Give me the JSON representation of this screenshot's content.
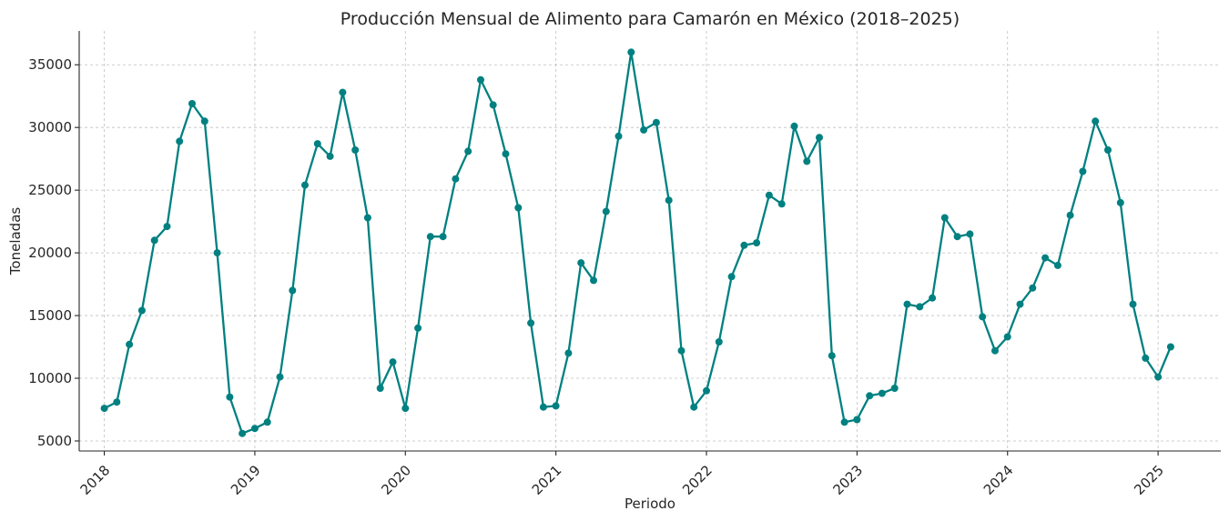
{
  "chart_data": {
    "type": "line",
    "title": "Producción Mensual de Alimento para Camarón en México (2018–2025)",
    "xlabel": "Periodo",
    "ylabel": "Toneladas",
    "grid": true,
    "legend": "none",
    "color": "#008080",
    "x_ticks": [
      "2018",
      "2019",
      "2020",
      "2021",
      "2022",
      "2023",
      "2024",
      "2025"
    ],
    "y_ticks": [
      5000,
      10000,
      15000,
      20000,
      25000,
      30000,
      35000
    ],
    "xlim": [
      "2017-11",
      "2025-06"
    ],
    "ylim": [
      4200,
      37700
    ],
    "series": [
      {
        "x": [
          "2018-01",
          "2018-02",
          "2018-03",
          "2018-04",
          "2018-05",
          "2018-06",
          "2018-07",
          "2018-08",
          "2018-09",
          "2018-10",
          "2018-11",
          "2018-12",
          "2019-01",
          "2019-02",
          "2019-03",
          "2019-04",
          "2019-05",
          "2019-06",
          "2019-07",
          "2019-08",
          "2019-09",
          "2019-10",
          "2019-11",
          "2019-12",
          "2020-01",
          "2020-02",
          "2020-03",
          "2020-04",
          "2020-05",
          "2020-06",
          "2020-07",
          "2020-08",
          "2020-09",
          "2020-10",
          "2020-11",
          "2020-12",
          "2021-01",
          "2021-02",
          "2021-03",
          "2021-04",
          "2021-05",
          "2021-06",
          "2021-07",
          "2021-08",
          "2021-09",
          "2021-10",
          "2021-11",
          "2021-12",
          "2022-01",
          "2022-02",
          "2022-03",
          "2022-04",
          "2022-05",
          "2022-06",
          "2022-07",
          "2022-08",
          "2022-09",
          "2022-10",
          "2022-11",
          "2022-12",
          "2023-01",
          "2023-02",
          "2023-03",
          "2023-04",
          "2023-05",
          "2023-06",
          "2023-07",
          "2023-08",
          "2023-09",
          "2023-10",
          "2023-11",
          "2023-12",
          "2024-01",
          "2024-02",
          "2024-03",
          "2024-04",
          "2024-05",
          "2024-06",
          "2024-07",
          "2024-08",
          "2024-09",
          "2024-10",
          "2024-11",
          "2024-12",
          "2025-01",
          "2025-02"
        ],
        "values": [
          7600,
          8100,
          12700,
          15400,
          21000,
          22100,
          28900,
          31900,
          30500,
          20000,
          8500,
          5600,
          6000,
          6500,
          10100,
          17000,
          25400,
          28700,
          27700,
          32800,
          28200,
          22800,
          9200,
          11300,
          7600,
          14000,
          21300,
          21300,
          25900,
          28100,
          33800,
          31800,
          27900,
          23600,
          14400,
          7700,
          7800,
          12000,
          19200,
          17800,
          23300,
          29300,
          36000,
          29800,
          30400,
          24200,
          12200,
          7700,
          9000,
          12900,
          18100,
          20600,
          20800,
          24600,
          23900,
          30100,
          27300,
          29200,
          11800,
          6500,
          6700,
          8600,
          8800,
          9200,
          15900,
          15700,
          16400,
          22800,
          21300,
          21500,
          14900,
          12200,
          13300,
          15900,
          17200,
          19600,
          19000,
          23000,
          26500,
          30500,
          28200,
          24000,
          15900,
          11600,
          10100,
          12500
        ]
      }
    ]
  }
}
